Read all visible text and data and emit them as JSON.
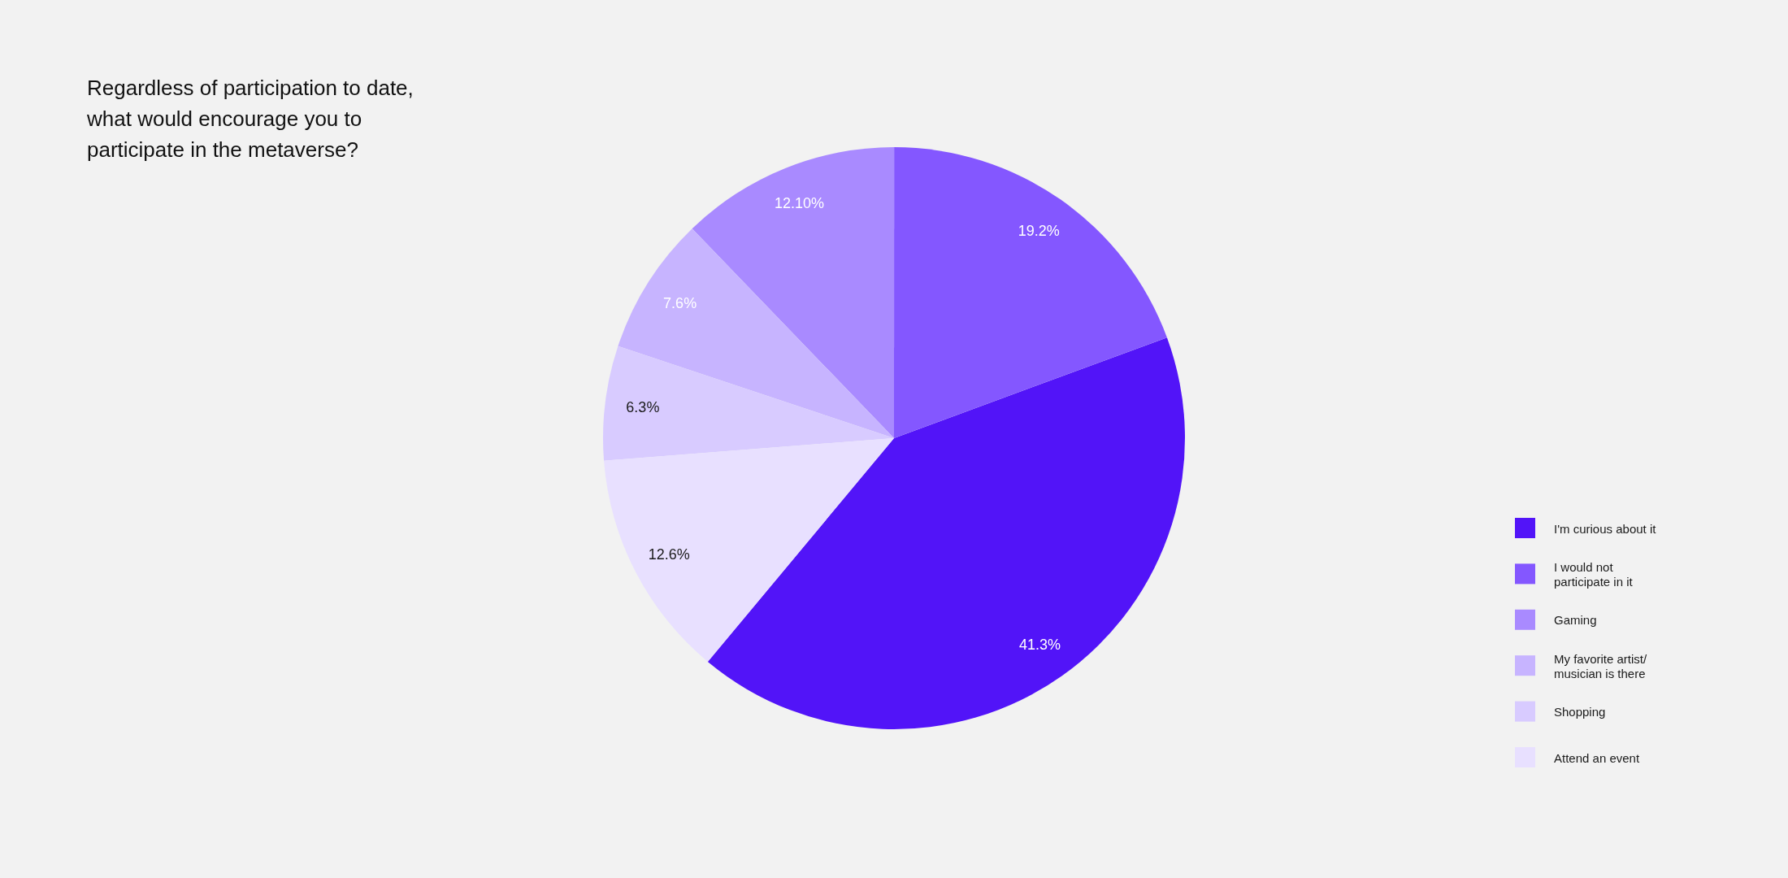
{
  "chart_data": {
    "type": "pie",
    "title": "Regardless of participation to date, what would encourage you to participate in the metaverse?",
    "categories": [
      "I'm curious about it",
      "I would not participate in it",
      "Gaming",
      "My favorite artist/musician is there",
      "Shopping",
      "Attend an event"
    ],
    "values": [
      41.3,
      19.2,
      12.1,
      7.6,
      6.3,
      12.6
    ],
    "value_labels": [
      "41.3%",
      "19.2%",
      "12.10%",
      "7.6%",
      "6.3%",
      "12.6%"
    ],
    "colors": [
      "#5214f8",
      "#8457ff",
      "#a98aff",
      "#c7b4ff",
      "#d8cbff",
      "#e8e0ff"
    ],
    "legend": "bottom right"
  }
}
